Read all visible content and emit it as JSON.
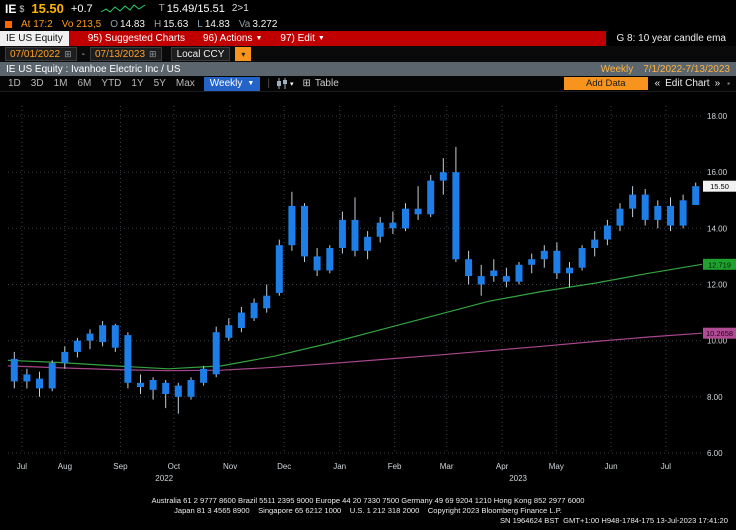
{
  "header": {
    "ticker": "IE",
    "currency": "$",
    "price": "15.50",
    "change": "+0.7",
    "quote_prefix": "T",
    "bid_ask": "15.49/15.51",
    "size": "2>1",
    "row2": {
      "at": "At 17:2",
      "volume": "Vo 213,5",
      "o_label": "O",
      "o": "14.83",
      "h_label": "H",
      "h": "15.63",
      "l_label": "L",
      "l": "14.83",
      "va_label": "Va",
      "va": "3.272"
    }
  },
  "menubar": {
    "security": "IE US Equity",
    "items": [
      "95) Suggested Charts",
      "96) Actions",
      "97) Edit"
    ],
    "function_label": "G 8: 10 year candle ema"
  },
  "datebar": {
    "start": "07/01/2022",
    "end": "07/13/2023",
    "currency_label": "Local CCY"
  },
  "titlebar": {
    "title": "IE US Equity : Ivanhoe Electric Inc / US",
    "period": "Weekly",
    "range": "7/1/2022-7/13/2023"
  },
  "toolbar": {
    "ranges": [
      "1D",
      "3D",
      "1M",
      "6M",
      "YTD",
      "1Y",
      "5Y",
      "Max"
    ],
    "period": "Weekly",
    "table": "Table",
    "add_data": "Add Data",
    "edit_chart": "Edit Chart"
  },
  "footer": {
    "line1": "Australia 61 2 9777 8600 Brazil 5511 2395 9000 Europe 44 20 7330 7500 Germany 49 69 9204 1210 Hong Kong 852 2977 6000",
    "line2": "Japan 81 3 4565 8900    Singapore 65 6212 1000    U.S. 1 212 318 2000    Copyright 2023 Bloomberg Finance L.P.",
    "line3": "SN 1964624 BST  GMT+1:00 H948-1784-175 13-Jul-2023 17:41:20"
  },
  "chart_data": {
    "type": "candlestick",
    "title": "IE US Equity : Ivanhoe Electric Inc / US",
    "period": "Weekly",
    "date_range": "7/1/2022 - 7/13/2023",
    "ylim": [
      6,
      18
    ],
    "yticks": [
      {
        "v": 18,
        "label": "18.00"
      },
      {
        "v": 16,
        "label": "16.00"
      },
      {
        "v": 14,
        "label": "14.00"
      },
      {
        "v": 12,
        "label": "12.00"
      },
      {
        "v": 10,
        "label": "10.00"
      },
      {
        "v": 8,
        "label": "8.00"
      },
      {
        "v": 6,
        "label": "6.00"
      }
    ],
    "months": [
      {
        "label": "Jul",
        "pos": 0.02
      },
      {
        "label": "Aug",
        "pos": 0.082
      },
      {
        "label": "Sep",
        "pos": 0.162
      },
      {
        "label": "Oct",
        "pos": 0.239
      },
      {
        "label": "Nov",
        "pos": 0.32
      },
      {
        "label": "Dec",
        "pos": 0.398
      },
      {
        "label": "Jan",
        "pos": 0.478
      },
      {
        "label": "Feb",
        "pos": 0.557
      },
      {
        "label": "Mar",
        "pos": 0.632
      },
      {
        "label": "Apr",
        "pos": 0.712
      },
      {
        "label": "May",
        "pos": 0.79
      },
      {
        "label": "Jun",
        "pos": 0.869
      },
      {
        "label": "Jul",
        "pos": 0.948
      }
    ],
    "years": [
      {
        "label": "2022",
        "pos": 0.225
      },
      {
        "label": "2023",
        "pos": 0.735
      }
    ],
    "candles": [
      [
        9.35,
        9.6,
        8.3,
        8.55
      ],
      [
        8.55,
        9.0,
        8.3,
        8.8
      ],
      [
        8.65,
        8.9,
        8.0,
        8.3
      ],
      [
        8.3,
        9.3,
        8.2,
        9.2
      ],
      [
        9.2,
        9.8,
        9.0,
        9.6
      ],
      [
        9.6,
        10.1,
        9.4,
        10.0
      ],
      [
        10.0,
        10.4,
        9.7,
        10.25
      ],
      [
        9.95,
        10.7,
        9.8,
        10.55
      ],
      [
        10.55,
        10.6,
        9.6,
        9.75
      ],
      [
        10.2,
        10.3,
        8.3,
        8.5
      ],
      [
        8.5,
        8.8,
        8.1,
        8.35
      ],
      [
        8.6,
        8.7,
        7.9,
        8.25
      ],
      [
        8.5,
        8.6,
        7.6,
        8.1
      ],
      [
        8.4,
        8.5,
        7.4,
        8.0
      ],
      [
        8.0,
        8.7,
        7.9,
        8.6
      ],
      [
        8.5,
        9.1,
        8.4,
        9.0
      ],
      [
        8.8,
        10.5,
        8.7,
        10.3
      ],
      [
        10.1,
        10.8,
        10.0,
        10.55
      ],
      [
        10.45,
        11.2,
        10.3,
        11.0
      ],
      [
        10.8,
        11.5,
        10.7,
        11.35
      ],
      [
        11.15,
        12.0,
        11.0,
        11.6
      ],
      [
        11.7,
        13.6,
        11.6,
        13.4
      ],
      [
        13.4,
        15.3,
        13.2,
        14.8
      ],
      [
        14.8,
        14.9,
        12.8,
        13.0
      ],
      [
        13.0,
        13.3,
        12.3,
        12.5
      ],
      [
        12.5,
        13.4,
        12.4,
        13.3
      ],
      [
        13.3,
        14.6,
        13.1,
        14.3
      ],
      [
        14.3,
        15.1,
        13.0,
        13.2
      ],
      [
        13.2,
        13.9,
        12.9,
        13.7
      ],
      [
        13.7,
        14.4,
        13.5,
        14.2
      ],
      [
        14.2,
        14.6,
        13.8,
        14.0
      ],
      [
        14.0,
        14.9,
        13.9,
        14.7
      ],
      [
        14.7,
        15.5,
        14.3,
        14.5
      ],
      [
        14.5,
        15.9,
        14.4,
        15.7
      ],
      [
        15.7,
        16.5,
        15.2,
        16.0
      ],
      [
        16.0,
        16.9,
        12.8,
        12.9
      ],
      [
        12.9,
        13.2,
        12.0,
        12.3
      ],
      [
        12.3,
        12.7,
        11.6,
        12.0
      ],
      [
        12.5,
        12.9,
        12.1,
        12.3
      ],
      [
        12.3,
        12.6,
        11.9,
        12.1
      ],
      [
        12.1,
        12.8,
        12.0,
        12.7
      ],
      [
        12.7,
        13.1,
        12.4,
        12.9
      ],
      [
        12.9,
        13.4,
        12.6,
        13.2
      ],
      [
        13.2,
        13.5,
        12.2,
        12.4
      ],
      [
        12.4,
        12.8,
        11.9,
        12.6
      ],
      [
        12.6,
        13.4,
        12.5,
        13.3
      ],
      [
        13.3,
        13.9,
        13.0,
        13.6
      ],
      [
        13.6,
        14.3,
        13.4,
        14.1
      ],
      [
        14.1,
        14.9,
        13.9,
        14.7
      ],
      [
        14.7,
        15.5,
        14.4,
        15.2
      ],
      [
        15.2,
        15.4,
        14.1,
        14.3
      ],
      [
        14.3,
        15.0,
        14.0,
        14.8
      ],
      [
        14.8,
        15.1,
        13.9,
        14.1
      ],
      [
        14.1,
        15.2,
        14.0,
        15.0
      ],
      [
        14.83,
        15.63,
        14.83,
        15.5
      ]
    ],
    "ma_short": {
      "last_label": "12.719",
      "values": [
        9.3,
        9.22,
        9.1,
        9.0,
        9.1,
        9.45,
        9.9,
        10.4,
        10.9,
        11.4,
        11.75,
        12.05,
        12.4,
        12.719
      ]
    },
    "ma_long": {
      "last_label": "10.2658",
      "values": [
        9.1,
        9.03,
        8.97,
        8.93,
        8.95,
        9.05,
        9.18,
        9.33,
        9.48,
        9.64,
        9.8,
        9.97,
        10.13,
        10.2658
      ]
    },
    "markers": [
      {
        "value": 15.5,
        "label": "15.50",
        "bg": "#f2f2f2",
        "fg": "#000000"
      },
      {
        "value": 12.719,
        "label": "12.719",
        "bg": "#1fa12f",
        "fg": "#001c08"
      },
      {
        "value": 10.2658,
        "label": "10.2658",
        "bg": "#b14b93",
        "fg": "#25001b"
      }
    ],
    "colors": {
      "candle": "#1d7ee8",
      "wick": "#c2cdd6",
      "ma_short": "#35a33f",
      "ma_long": "#a8478d",
      "grid": "#3b4148",
      "axis_text": "#cfd6db"
    }
  }
}
